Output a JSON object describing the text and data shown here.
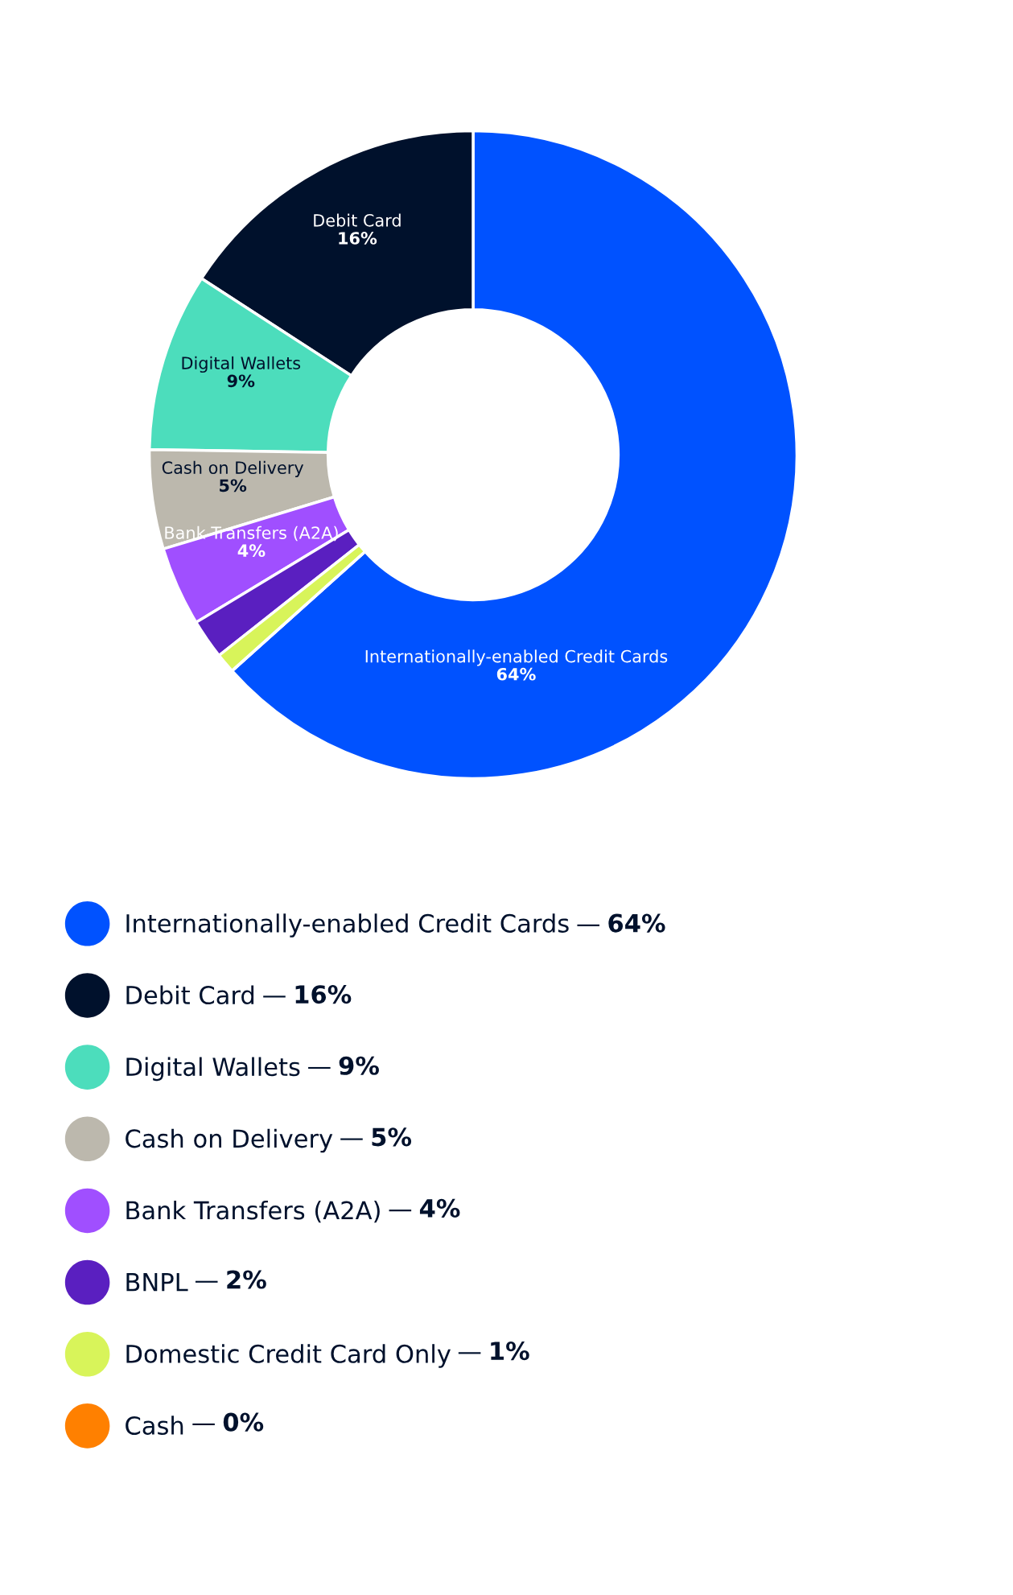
{
  "chart_data": {
    "type": "donut",
    "categories": [
      "Internationally-enabled Credit Cards",
      "Debit Card",
      "Digital Wallets",
      "Cash on Delivery",
      "Bank Transfers (A2A)",
      "BNPL",
      "Domestic Credit Card Only",
      "Cash"
    ],
    "values": [
      64,
      16,
      9,
      5,
      4,
      2,
      1,
      0
    ],
    "value_labels": [
      "64%",
      "16%",
      "9%",
      "5%",
      "4%",
      "2%",
      "1%",
      "0%"
    ],
    "colors": [
      "#0052ff",
      "#00112c",
      "#4cddbc",
      "#bcb8ad",
      "#a04fff",
      "#5a1fc0",
      "#d8f45a",
      "#ff8000"
    ],
    "annotations": [
      "—"
    ],
    "legend": "bottom"
  }
}
